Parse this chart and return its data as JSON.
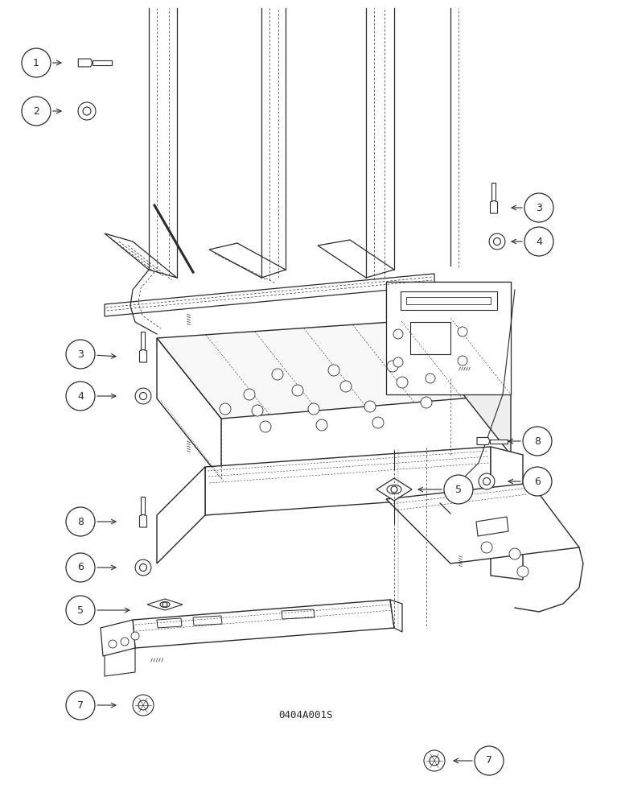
{
  "bg_color": "#ffffff",
  "line_color": "#2a2a2a",
  "fig_width": 7.72,
  "fig_height": 10.0,
  "dpi": 100,
  "part_code": "0404A001S",
  "title_fontsize": 9
}
